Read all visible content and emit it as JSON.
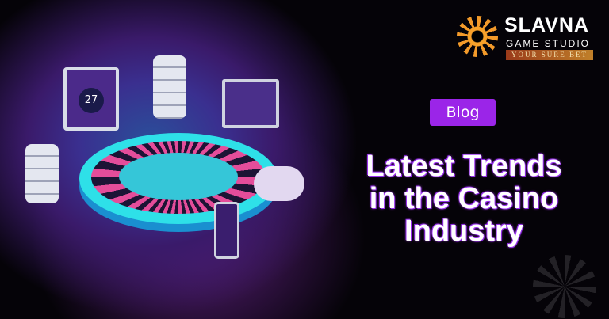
{
  "logo": {
    "brand": "SLAVNA",
    "subtitle": "GAME STUDIO",
    "tagline": "YOUR SURE BET"
  },
  "badge": {
    "label": "Blog"
  },
  "headline": {
    "lines": [
      "Latest Trends",
      "in the Casino",
      "Industry"
    ]
  },
  "illustration": {
    "monitor_number": "27"
  },
  "colors": {
    "badge": "#9b25e8",
    "accent_orange": "#f39a2a",
    "background": "#050308"
  }
}
